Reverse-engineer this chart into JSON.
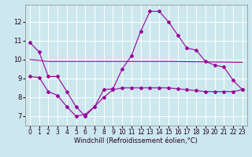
{
  "background_color": "#cce8ee",
  "grid_color": "#ffffff",
  "line_color": "#990099",
  "line_width": 0.8,
  "marker": "D",
  "marker_size": 2.0,
  "xlabel": "Windchill (Refroidissement éolien,°C)",
  "xlabel_fontsize": 6.0,
  "tick_fontsize": 5.5,
  "xlim": [
    -0.5,
    23.5
  ],
  "ylim": [
    6.5,
    12.9
  ],
  "yticks": [
    7,
    8,
    9,
    10,
    11,
    12
  ],
  "xticks": [
    0,
    1,
    2,
    3,
    4,
    5,
    6,
    7,
    8,
    9,
    10,
    11,
    12,
    13,
    14,
    15,
    16,
    17,
    18,
    19,
    20,
    21,
    22,
    23
  ],
  "series1_x": [
    0,
    1,
    2,
    3,
    4,
    5,
    6,
    7,
    8,
    9,
    10,
    11,
    12,
    13,
    14,
    15,
    16,
    17,
    18,
    19,
    20,
    21,
    22,
    23
  ],
  "series1_y": [
    10.9,
    10.4,
    9.1,
    9.1,
    8.3,
    7.5,
    7.0,
    7.5,
    8.4,
    8.45,
    9.5,
    10.2,
    11.5,
    12.55,
    12.55,
    12.0,
    11.3,
    10.6,
    10.5,
    9.9,
    9.7,
    9.6,
    8.9,
    8.4
  ],
  "series2_x": [
    0,
    2,
    15,
    23
  ],
  "series2_y": [
    10.0,
    9.9,
    9.9,
    9.85
  ],
  "series3_x": [
    0,
    1,
    2,
    3,
    4,
    5,
    6,
    7,
    8,
    9,
    10,
    11,
    12,
    13,
    14,
    15,
    16,
    17,
    18,
    19,
    20,
    21,
    22,
    23
  ],
  "series3_y": [
    9.1,
    9.05,
    8.3,
    8.1,
    7.5,
    7.0,
    7.1,
    7.5,
    8.0,
    8.4,
    8.5,
    8.5,
    8.5,
    8.5,
    8.5,
    8.5,
    8.45,
    8.4,
    8.35,
    8.3,
    8.3,
    8.3,
    8.3,
    8.4
  ]
}
